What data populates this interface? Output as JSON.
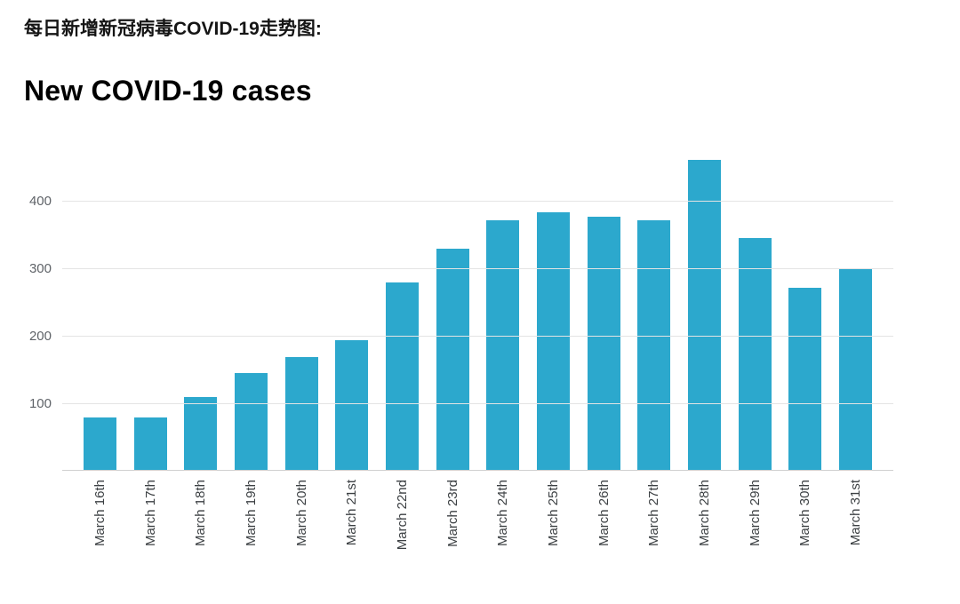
{
  "header": {
    "zh_title": "每日新增新冠病毒COVID-19走势图:"
  },
  "chart_data": {
    "type": "bar",
    "title": "New COVID-19 cases",
    "categories": [
      "March 16th",
      "March 17th",
      "March 18th",
      "March 19th",
      "March 20th",
      "March 21st",
      "March 22nd",
      "March 23rd",
      "March 24th",
      "March 25th",
      "March 26th",
      "March 27th",
      "March 28th",
      "March 29th",
      "March 30th",
      "March 31st"
    ],
    "values": [
      78,
      78,
      108,
      144,
      167,
      192,
      278,
      327,
      369,
      382,
      375,
      369,
      459,
      343,
      270,
      297
    ],
    "xlabel": "",
    "ylabel": "",
    "ylim": [
      0,
      480
    ],
    "yticks": [
      100,
      200,
      300,
      400
    ],
    "grid": true,
    "legend": "none",
    "bar_color": "#2ca8cd",
    "gridline_color": "#e4e4e4",
    "background_color": "#ffffff"
  }
}
